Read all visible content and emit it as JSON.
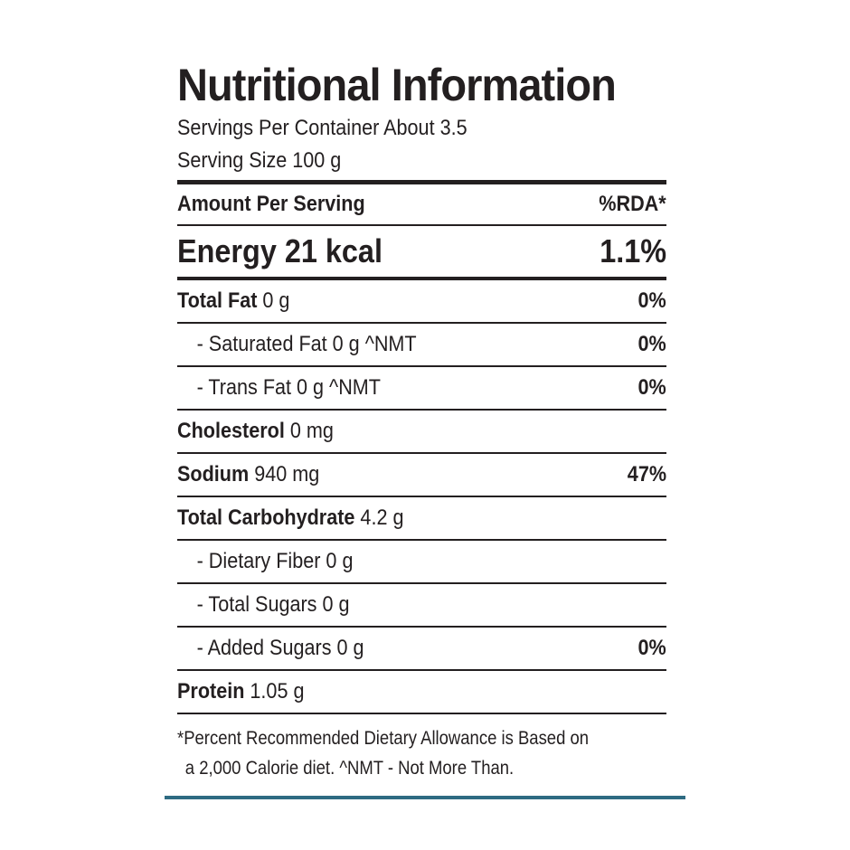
{
  "title": "Nutritional Information",
  "servings_per_container": "Servings Per Container About 3.5",
  "serving_size": "Serving Size 100 g",
  "header": {
    "amount_label": "Amount Per Serving",
    "rda_label": "%RDA*"
  },
  "energy": {
    "label": "Energy 21 kcal",
    "rda": "1.1%"
  },
  "rows": [
    {
      "name": "Total Fat",
      "amount": " 0 g",
      "rda": "0%"
    },
    {
      "name": "- Saturated Fat",
      "amount": " 0 g  ^NMT",
      "rda": "0%"
    },
    {
      "name": "- Trans Fat",
      "amount": " 0 g  ^NMT",
      "rda": "0%"
    },
    {
      "name": "Cholesterol",
      "amount": " 0 mg",
      "rda": ""
    },
    {
      "name": "Sodium",
      "amount": " 940 mg",
      "rda": "47%"
    },
    {
      "name": "Total Carbohydrate",
      "amount": " 4.2 g",
      "rda": ""
    },
    {
      "name": "- Dietary Fiber",
      "amount": " 0 g",
      "rda": ""
    },
    {
      "name": "- Total Sugars",
      "amount": " 0 g",
      "rda": ""
    },
    {
      "name": "- Added Sugars",
      "amount": " 0 g",
      "rda": "0%"
    },
    {
      "name": "Protein",
      "amount": " 1.05 g",
      "rda": ""
    }
  ],
  "footnote": {
    "line1": "*Percent Recommended Dietary Allowance is Based on",
    "line2": "a 2,000 Calorie diet.  ^NMT - Not More Than."
  },
  "colors": {
    "text": "#231f20",
    "accent_rule": "#2e6b82"
  }
}
